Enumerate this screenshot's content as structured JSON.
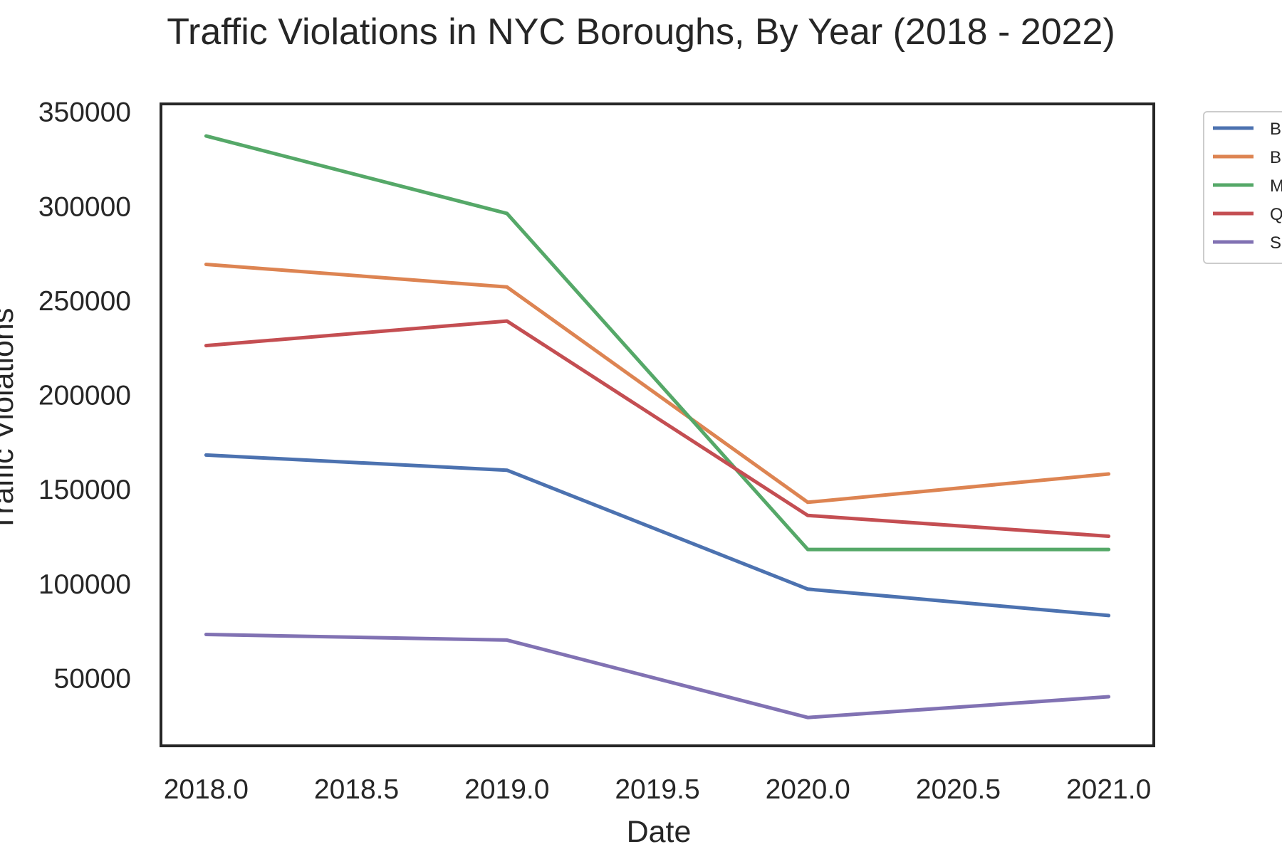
{
  "chart_data": {
    "type": "line",
    "title": "Traffic Violations in NYC Boroughs, By Year (2018 - 2022)",
    "xlabel": "Date",
    "ylabel": "Traffic Violations",
    "x": [
      2018,
      2019,
      2020,
      2021
    ],
    "xlim": [
      2017.85,
      2021.15
    ],
    "ylim": [
      14000,
      354000
    ],
    "x_ticks": [
      2018.0,
      2018.5,
      2019.0,
      2019.5,
      2020.0,
      2020.5,
      2021.0
    ],
    "x_tick_labels": [
      "2018.0",
      "2018.5",
      "2019.0",
      "2019.5",
      "2020.0",
      "2020.5",
      "2021.0"
    ],
    "y_ticks": [
      50000,
      100000,
      150000,
      200000,
      250000,
      300000,
      350000
    ],
    "y_tick_labels": [
      "50000",
      "100000",
      "150000",
      "200000",
      "250000",
      "300000",
      "350000"
    ],
    "grid": false,
    "legend_position": "outside upper right",
    "series": [
      {
        "name": "Bronx",
        "legend_label": "B",
        "color": "#4c72b0",
        "values": [
          168000,
          160000,
          97000,
          83000
        ]
      },
      {
        "name": "Brooklyn",
        "legend_label": "B",
        "color": "#dd8452",
        "values": [
          269000,
          257000,
          143000,
          158000
        ]
      },
      {
        "name": "Manhattan",
        "legend_label": "M",
        "color": "#55a868",
        "values": [
          337000,
          296000,
          118000,
          118000
        ]
      },
      {
        "name": "Queens",
        "legend_label": "Q",
        "color": "#c44e52",
        "values": [
          226000,
          239000,
          136000,
          125000
        ]
      },
      {
        "name": "Staten Island",
        "legend_label": "S",
        "color": "#8172b3",
        "values": [
          73000,
          70000,
          29000,
          40000
        ]
      }
    ]
  }
}
